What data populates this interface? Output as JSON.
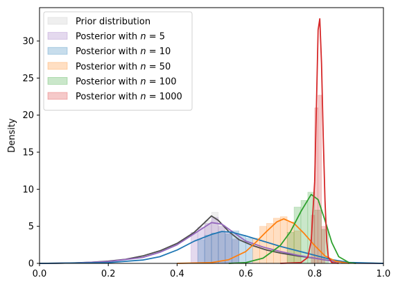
{
  "chart_data": {
    "type": "histogram-kde",
    "title": "",
    "xlabel": "",
    "ylabel": "Density",
    "xlim": [
      0.0,
      1.0
    ],
    "ylim": [
      0,
      34.5
    ],
    "xticks": [
      0.0,
      0.2,
      0.4,
      0.6,
      0.8,
      1.0
    ],
    "xtick_labels": [
      "0.0",
      "0.2",
      "0.4",
      "0.6",
      "0.8",
      "1.0"
    ],
    "yticks": [
      0,
      5,
      10,
      15,
      20,
      25,
      30
    ],
    "ytick_labels": [
      "0",
      "5",
      "10",
      "15",
      "20",
      "25",
      "30"
    ],
    "grid": false,
    "legend_position": "top-left",
    "series": [
      {
        "name": "Prior distribution",
        "fill_color": "#bfbfbf",
        "line_color": "#4d4d4d",
        "kde": [
          [
            0.0,
            0
          ],
          [
            0.05,
            0.02
          ],
          [
            0.1,
            0.07
          ],
          [
            0.15,
            0.15
          ],
          [
            0.2,
            0.3
          ],
          [
            0.25,
            0.55
          ],
          [
            0.3,
            1.0
          ],
          [
            0.35,
            1.7
          ],
          [
            0.4,
            2.7
          ],
          [
            0.45,
            4.2
          ],
          [
            0.48,
            5.5
          ],
          [
            0.5,
            6.4
          ],
          [
            0.52,
            5.8
          ],
          [
            0.55,
            4.3
          ],
          [
            0.58,
            3.2
          ],
          [
            0.62,
            2.4
          ],
          [
            0.66,
            1.8
          ],
          [
            0.7,
            1.4
          ],
          [
            0.75,
            1.0
          ],
          [
            0.8,
            0.7
          ],
          [
            0.85,
            0.3
          ],
          [
            0.9,
            0.05
          ],
          [
            1.0,
            0
          ]
        ],
        "bins": [
          [
            0.48,
            0.5,
            5.8
          ],
          [
            0.5,
            0.52,
            6.9
          ],
          [
            0.52,
            0.54,
            5.2
          ],
          [
            0.54,
            0.56,
            4.0
          ],
          [
            0.56,
            0.58,
            3.2
          ]
        ]
      },
      {
        "name": "Posterior with $n = 5$",
        "fill_color": "#9467bd",
        "line_color": "#9467bd",
        "kde": [
          [
            0.0,
            0
          ],
          [
            0.1,
            0.05
          ],
          [
            0.2,
            0.25
          ],
          [
            0.3,
            0.8
          ],
          [
            0.35,
            1.5
          ],
          [
            0.4,
            2.5
          ],
          [
            0.45,
            4.0
          ],
          [
            0.5,
            5.5
          ],
          [
            0.53,
            5.3
          ],
          [
            0.56,
            4.3
          ],
          [
            0.6,
            3.0
          ],
          [
            0.65,
            2.2
          ],
          [
            0.7,
            1.6
          ],
          [
            0.75,
            1.1
          ],
          [
            0.8,
            0.7
          ],
          [
            0.85,
            0.3
          ],
          [
            0.9,
            0.05
          ],
          [
            1.0,
            0
          ]
        ],
        "bins": [
          [
            0.44,
            0.46,
            4.2
          ],
          [
            0.46,
            0.48,
            4.9
          ],
          [
            0.48,
            0.5,
            5.4
          ],
          [
            0.5,
            0.52,
            6.2
          ],
          [
            0.52,
            0.54,
            5.0
          ],
          [
            0.54,
            0.56,
            4.2
          ],
          [
            0.56,
            0.58,
            3.3
          ]
        ]
      },
      {
        "name": "Posterior with $n = 10$",
        "fill_color": "#1f77b4",
        "line_color": "#1f77b4",
        "kde": [
          [
            0.0,
            0
          ],
          [
            0.2,
            0.1
          ],
          [
            0.3,
            0.45
          ],
          [
            0.35,
            0.9
          ],
          [
            0.4,
            1.8
          ],
          [
            0.45,
            3.0
          ],
          [
            0.5,
            3.9
          ],
          [
            0.53,
            4.3
          ],
          [
            0.56,
            4.2
          ],
          [
            0.6,
            3.7
          ],
          [
            0.65,
            3.0
          ],
          [
            0.7,
            2.3
          ],
          [
            0.75,
            1.7
          ],
          [
            0.8,
            1.1
          ],
          [
            0.85,
            0.5
          ],
          [
            0.9,
            0.12
          ],
          [
            1.0,
            0
          ]
        ],
        "bins": [
          [
            0.46,
            0.48,
            3.2
          ],
          [
            0.48,
            0.5,
            3.8
          ],
          [
            0.5,
            0.52,
            4.1
          ],
          [
            0.52,
            0.54,
            4.3
          ],
          [
            0.54,
            0.56,
            4.0
          ],
          [
            0.56,
            0.58,
            4.4
          ],
          [
            0.58,
            0.6,
            3.8
          ],
          [
            0.6,
            0.62,
            3.4
          ]
        ]
      },
      {
        "name": "Posterior with $n = 50$",
        "fill_color": "#ff7f0e",
        "line_color": "#ff7f0e",
        "kde": [
          [
            0.4,
            0
          ],
          [
            0.5,
            0.1
          ],
          [
            0.55,
            0.5
          ],
          [
            0.6,
            1.6
          ],
          [
            0.63,
            2.9
          ],
          [
            0.66,
            4.3
          ],
          [
            0.69,
            5.6
          ],
          [
            0.71,
            6.0
          ],
          [
            0.74,
            5.4
          ],
          [
            0.77,
            4.0
          ],
          [
            0.8,
            2.4
          ],
          [
            0.83,
            1.0
          ],
          [
            0.86,
            0.3
          ],
          [
            0.9,
            0
          ]
        ],
        "bins": [
          [
            0.62,
            0.64,
            3.4
          ],
          [
            0.64,
            0.66,
            5.0
          ],
          [
            0.66,
            0.68,
            5.4
          ],
          [
            0.68,
            0.7,
            6.1
          ],
          [
            0.7,
            0.72,
            6.3
          ],
          [
            0.72,
            0.74,
            5.6
          ],
          [
            0.74,
            0.76,
            4.4
          ]
        ]
      },
      {
        "name": "Posterior with $n = 100$",
        "fill_color": "#2ca02c",
        "line_color": "#2ca02c",
        "kde": [
          [
            0.55,
            0
          ],
          [
            0.6,
            0.1
          ],
          [
            0.65,
            0.7
          ],
          [
            0.7,
            2.4
          ],
          [
            0.73,
            4.3
          ],
          [
            0.76,
            7.0
          ],
          [
            0.79,
            9.3
          ],
          [
            0.81,
            8.6
          ],
          [
            0.83,
            5.8
          ],
          [
            0.85,
            2.8
          ],
          [
            0.87,
            0.9
          ],
          [
            0.9,
            0.1
          ],
          [
            0.92,
            0
          ]
        ],
        "bins": [
          [
            0.72,
            0.74,
            4.2
          ],
          [
            0.74,
            0.76,
            7.6
          ],
          [
            0.76,
            0.78,
            8.5
          ],
          [
            0.78,
            0.8,
            9.6
          ],
          [
            0.8,
            0.82,
            7.2
          ],
          [
            0.82,
            0.84,
            4.6
          ]
        ]
      },
      {
        "name": "Posterior with $n = 1000$",
        "fill_color": "#d62728",
        "line_color": "#d62728",
        "kde": [
          [
            0.7,
            0
          ],
          [
            0.76,
            0.1
          ],
          [
            0.78,
            0.8
          ],
          [
            0.79,
            3.0
          ],
          [
            0.8,
            11.0
          ],
          [
            0.805,
            21.0
          ],
          [
            0.81,
            31.5
          ],
          [
            0.815,
            33.0
          ],
          [
            0.82,
            27.0
          ],
          [
            0.825,
            17.0
          ],
          [
            0.83,
            8.5
          ],
          [
            0.835,
            3.0
          ],
          [
            0.84,
            0.8
          ],
          [
            0.85,
            0.1
          ],
          [
            0.87,
            0
          ]
        ],
        "bins": [
          [
            0.79,
            0.8,
            6.5
          ],
          [
            0.8,
            0.81,
            21.0
          ],
          [
            0.81,
            0.82,
            22.7
          ],
          [
            0.82,
            0.83,
            5.0
          ]
        ]
      }
    ]
  }
}
